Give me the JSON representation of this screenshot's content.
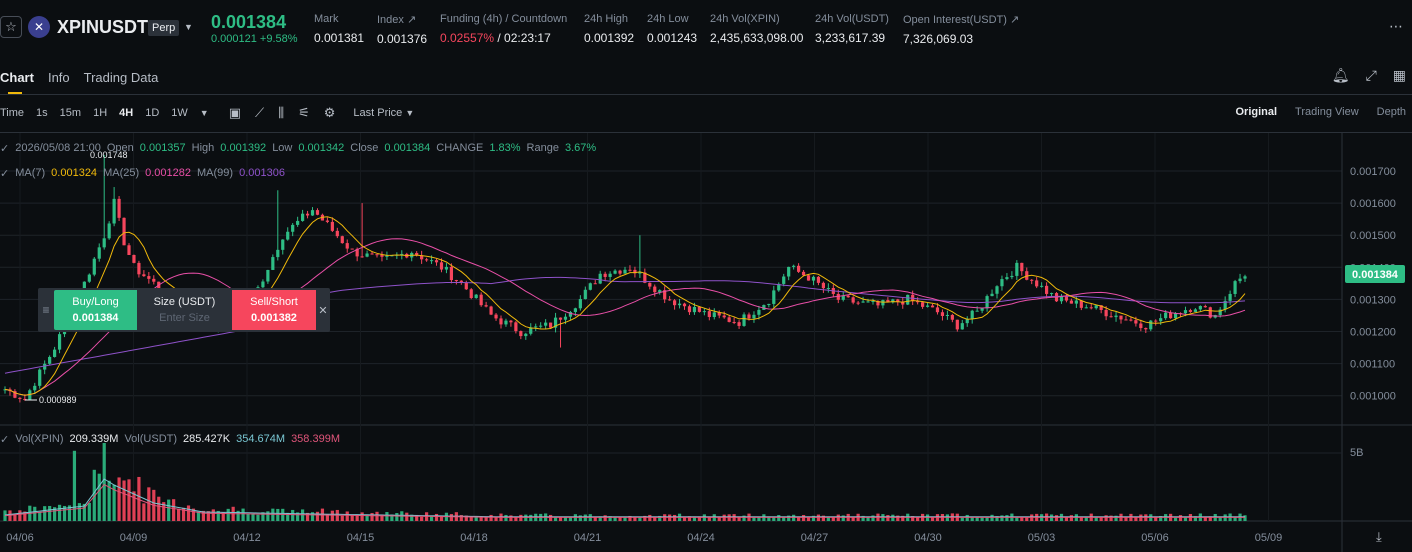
{
  "header": {
    "symbol": "XPINUSDT",
    "contract_type": "Perp",
    "last_price": "0.001384",
    "change": "0.000121 +9.58%",
    "stats": {
      "mark_label": "Mark",
      "mark_value": "0.001381",
      "index_label": "Index ↗",
      "index_value": "0.001376",
      "funding_label": "Funding (4h) / Countdown",
      "funding_rate": "0.02557%",
      "funding_countdown": "/ 02:23:17",
      "high_label": "24h High",
      "high_value": "0.001392",
      "low_label": "24h Low",
      "low_value": "0.001243",
      "volxpin_label": "24h Vol(XPIN)",
      "volxpin_value": "2,435,633,098.00",
      "volusdt_label": "24h Vol(USDT)",
      "volusdt_value": "3,233,617.39",
      "oi_label": "Open Interest(USDT) ↗",
      "oi_value": "7,326,069.03"
    }
  },
  "tabs": [
    "Chart",
    "Info",
    "Trading Data"
  ],
  "toolbar": {
    "timeframes": [
      "Time",
      "1s",
      "15m",
      "1H",
      "4H",
      "1D",
      "1W"
    ],
    "active_timeframe": "4H",
    "price_type": "Last Price",
    "views": [
      "Original",
      "Trading View",
      "Depth"
    ],
    "active_view": "Original"
  },
  "ohlc": {
    "date": "2026/05/08 21:00",
    "open_label": "Open",
    "open": "0.001357",
    "high_label": "High",
    "high": "0.001392",
    "low_label": "Low",
    "low": "0.001342",
    "close_label": "Close",
    "close": "0.001384",
    "change_label": "CHANGE",
    "change": "1.83%",
    "range_label": "Range",
    "range": "3.67%"
  },
  "ma": {
    "ma7_label": "MA(7)",
    "ma7": "0.001324",
    "ma25_label": "MA(25)",
    "ma25": "0.001282",
    "ma99_label": "MA(99)",
    "ma99": "0.001306"
  },
  "volume": {
    "xpin_label": "Vol(XPIN)",
    "xpin": "209.339M",
    "usdt_label": "Vol(USDT)",
    "usdt": "285.427K",
    "ma1": "354.674M",
    "ma2": "358.399M"
  },
  "order": {
    "buy_label": "Buy/Long",
    "buy_price": "0.001384",
    "size_label": "Size (USDT)",
    "size_placeholder": "Enter Size",
    "sell_label": "Sell/Short",
    "sell_price": "0.001382"
  },
  "chart_data": {
    "type": "candlestick",
    "price_ticks": [
      "0.001700",
      "0.001600",
      "0.001500",
      "0.001400",
      "0.001300",
      "0.001200",
      "0.001100",
      "0.001000"
    ],
    "price_tick_values": [
      0.0017,
      0.0016,
      0.0015,
      0.0014,
      0.0013,
      0.0012,
      0.0011,
      0.001
    ],
    "current_price_label": "0.001384",
    "high_marker": "0.001748",
    "low_marker": "0.000989",
    "volume_tick": "5B",
    "x_ticks": [
      "04/06",
      "04/09",
      "04/12",
      "04/15",
      "04/18",
      "04/21",
      "04/24",
      "04/27",
      "04/30",
      "05/03",
      "05/06",
      "05/09"
    ],
    "anchors": [
      [
        0,
        0.00102
      ],
      [
        4,
        0.00099
      ],
      [
        10,
        0.00115
      ],
      [
        16,
        0.00135
      ],
      [
        20,
        0.0015
      ],
      [
        22,
        0.0016
      ],
      [
        24,
        0.00148
      ],
      [
        26,
        0.0014
      ],
      [
        30,
        0.00135
      ],
      [
        34,
        0.0013
      ],
      [
        42,
        0.00122
      ],
      [
        50,
        0.0013
      ],
      [
        56,
        0.0015
      ],
      [
        62,
        0.00158
      ],
      [
        70,
        0.00145
      ],
      [
        76,
        0.00142
      ],
      [
        82,
        0.00145
      ],
      [
        88,
        0.0014
      ],
      [
        92,
        0.00135
      ],
      [
        98,
        0.00125
      ],
      [
        104,
        0.0012
      ],
      [
        110,
        0.00122
      ],
      [
        116,
        0.0013
      ],
      [
        120,
        0.00138
      ],
      [
        126,
        0.0014
      ],
      [
        134,
        0.0013
      ],
      [
        142,
        0.00125
      ],
      [
        148,
        0.00123
      ],
      [
        154,
        0.0013
      ],
      [
        158,
        0.0014
      ],
      [
        162,
        0.00137
      ],
      [
        168,
        0.0013
      ],
      [
        176,
        0.00128
      ],
      [
        182,
        0.0013
      ],
      [
        188,
        0.00126
      ],
      [
        192,
        0.00122
      ],
      [
        196,
        0.00126
      ],
      [
        200,
        0.00135
      ],
      [
        204,
        0.0014
      ],
      [
        208,
        0.00135
      ],
      [
        212,
        0.0013
      ],
      [
        218,
        0.00128
      ],
      [
        224,
        0.00125
      ],
      [
        230,
        0.00122
      ],
      [
        236,
        0.00126
      ],
      [
        240,
        0.00128
      ],
      [
        244,
        0.00125
      ],
      [
        248,
        0.00135
      ],
      [
        250,
        0.00138
      ]
    ],
    "spikes": [
      [
        20,
        0.00175
      ],
      [
        22,
        0.00165
      ],
      [
        55,
        0.00164
      ],
      [
        72,
        0.0016
      ],
      [
        128,
        0.0015
      ],
      [
        112,
        0.00115
      ]
    ],
    "volume_levels": [
      [
        0,
        0.1
      ],
      [
        16,
        0.25
      ],
      [
        20,
        0.7
      ],
      [
        22,
        0.6
      ],
      [
        30,
        0.3
      ],
      [
        40,
        0.15
      ],
      [
        60,
        0.12
      ],
      [
        100,
        0.07
      ],
      [
        250,
        0.07
      ]
    ]
  }
}
